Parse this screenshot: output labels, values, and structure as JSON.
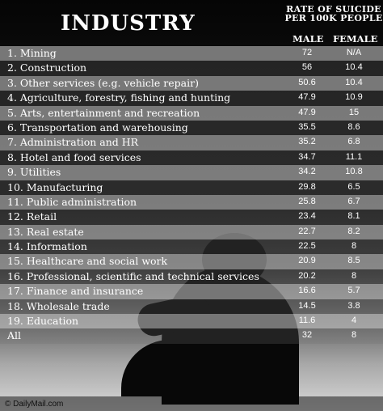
{
  "header": {
    "title": "INDUSTRY",
    "rate_line1": "RATE OF SUICIDE",
    "rate_line2": "PER 100K PEOPLE",
    "male": "MALE",
    "female": "FEMALE"
  },
  "rows": [
    {
      "label": "1.  Mining",
      "male": "72",
      "female": "N/A"
    },
    {
      "label": "2.  Construction",
      "male": "56",
      "female": "10.4"
    },
    {
      "label": "3.  Other services (e.g. vehicle repair)",
      "male": "50.6",
      "female": "10.4"
    },
    {
      "label": "4.  Agriculture, forestry, fishing and hunting",
      "male": "47.9",
      "female": "10.9"
    },
    {
      "label": "5.  Arts, entertainment and recreation",
      "male": "47.9",
      "female": "15"
    },
    {
      "label": "6.  Transportation and warehousing",
      "male": "35.5",
      "female": "8.6"
    },
    {
      "label": "7.  Administration and HR",
      "male": "35.2",
      "female": "6.8"
    },
    {
      "label": "8.  Hotel and food services",
      "male": "34.7",
      "female": "11.1"
    },
    {
      "label": "9.  Utilities",
      "male": "34.2",
      "female": "10.8"
    },
    {
      "label": "10. Manufacturing",
      "male": "29.8",
      "female": "6.5"
    },
    {
      "label": "11. Public administration",
      "male": "25.8",
      "female": "6.7"
    },
    {
      "label": "12. Retail",
      "male": "23.4",
      "female": "8.1"
    },
    {
      "label": "13. Real estate",
      "male": "22.7",
      "female": "8.2"
    },
    {
      "label": "14. Information",
      "male": "22.5",
      "female": "8"
    },
    {
      "label": "15. Healthcare and social work",
      "male": "20.9",
      "female": "8.5"
    },
    {
      "label": "16. Professional, scientific and technical services",
      "male": "20.2",
      "female": "8"
    },
    {
      "label": "17. Finance and insurance",
      "male": "16.6",
      "female": "5.7"
    },
    {
      "label": "18. Wholesale trade",
      "male": "14.5",
      "female": "3.8"
    },
    {
      "label": "19. Education",
      "male": "11.6",
      "female": "4"
    },
    {
      "label": "     All",
      "male": "32",
      "female": "8"
    }
  ],
  "credit": "© DailyMail.com"
}
